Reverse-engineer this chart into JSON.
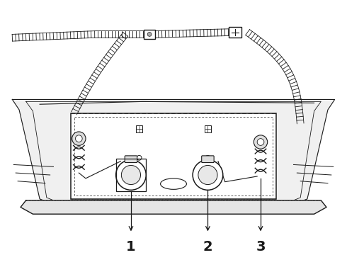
{
  "bg_color": "#ffffff",
  "line_color": "#1a1a1a",
  "labels": [
    "1",
    "2",
    "3"
  ],
  "fig_width": 4.9,
  "fig_height": 3.6,
  "dpi": 100
}
